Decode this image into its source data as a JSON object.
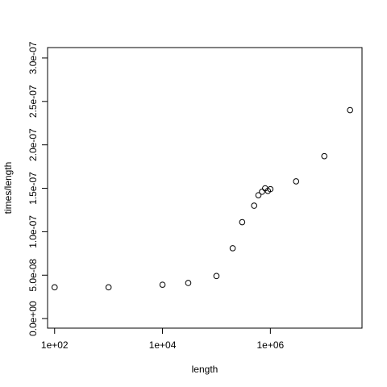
{
  "chart_data": {
    "type": "scatter",
    "title": "",
    "xlabel": "length",
    "ylabel": "times/length",
    "x_scale": "log",
    "y_scale": "linear",
    "xlim": [
      74,
      50000000
    ],
    "ylim": [
      -1.1e-08,
      3.12e-07
    ],
    "x_ticks": [
      {
        "value": 100,
        "label": "1e+02"
      },
      {
        "value": 10000,
        "label": "1e+04"
      },
      {
        "value": 1000000,
        "label": "1e+06"
      }
    ],
    "y_ticks": [
      {
        "value": 0,
        "label": "0.0e+00"
      },
      {
        "value": 5e-08,
        "label": "5.0e-08"
      },
      {
        "value": 1e-07,
        "label": "1.0e-07"
      },
      {
        "value": 1.5e-07,
        "label": "1.5e-07"
      },
      {
        "value": 2e-07,
        "label": "2.0e-07"
      },
      {
        "value": 2.5e-07,
        "label": "2.5e-07"
      },
      {
        "value": 3e-07,
        "label": "3.0e-07"
      }
    ],
    "grid": false,
    "legend": "none",
    "marker": "open-circle",
    "color": "#000000",
    "points": [
      {
        "x": 100,
        "y": 3.6e-08
      },
      {
        "x": 1000,
        "y": 3.6e-08
      },
      {
        "x": 10000,
        "y": 3.9e-08
      },
      {
        "x": 30000,
        "y": 4.1e-08
      },
      {
        "x": 100000,
        "y": 4.9e-08
      },
      {
        "x": 200000,
        "y": 8.1e-08
      },
      {
        "x": 300000,
        "y": 1.11e-07
      },
      {
        "x": 500000,
        "y": 1.3e-07
      },
      {
        "x": 600000,
        "y": 1.42e-07
      },
      {
        "x": 700000,
        "y": 1.46e-07
      },
      {
        "x": 800000,
        "y": 1.5e-07
      },
      {
        "x": 900000,
        "y": 1.47e-07
      },
      {
        "x": 1000000,
        "y": 1.49e-07
      },
      {
        "x": 3000000,
        "y": 1.58e-07
      },
      {
        "x": 10000000,
        "y": 1.87e-07
      },
      {
        "x": 30000000,
        "y": 2.4e-07
      }
    ]
  }
}
